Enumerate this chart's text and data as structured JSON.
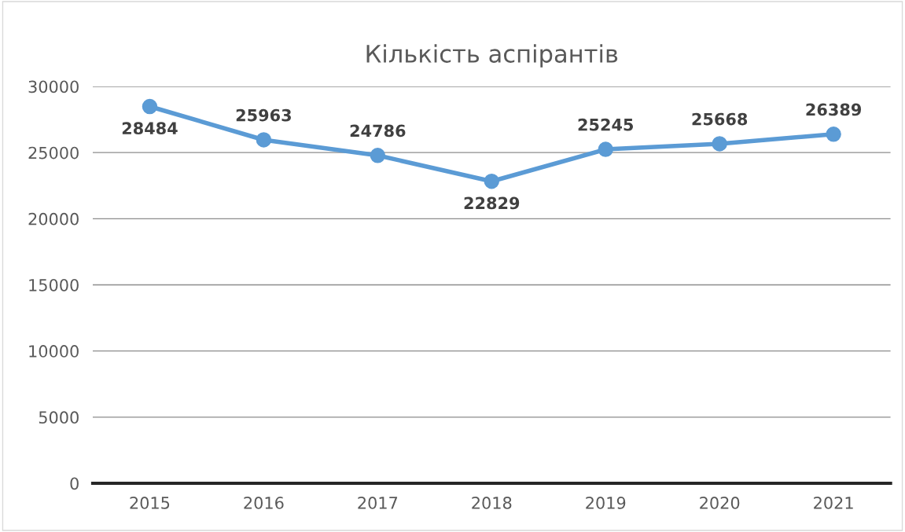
{
  "chart_data": {
    "type": "line",
    "title": "Кількість аспірантів",
    "categories": [
      "2015",
      "2016",
      "2017",
      "2018",
      "2019",
      "2020",
      "2021"
    ],
    "series": [
      {
        "color": "#5b9bd5",
        "values": [
          28484,
          25963,
          24786,
          22829,
          25245,
          25668,
          26389
        ]
      }
    ],
    "ylim": [
      0,
      30000
    ],
    "yticks": [
      0,
      5000,
      10000,
      15000,
      20000,
      25000,
      30000
    ],
    "grid": "y",
    "marker": "circle",
    "line_style": "solid",
    "data_labels": true,
    "legend": false
  }
}
